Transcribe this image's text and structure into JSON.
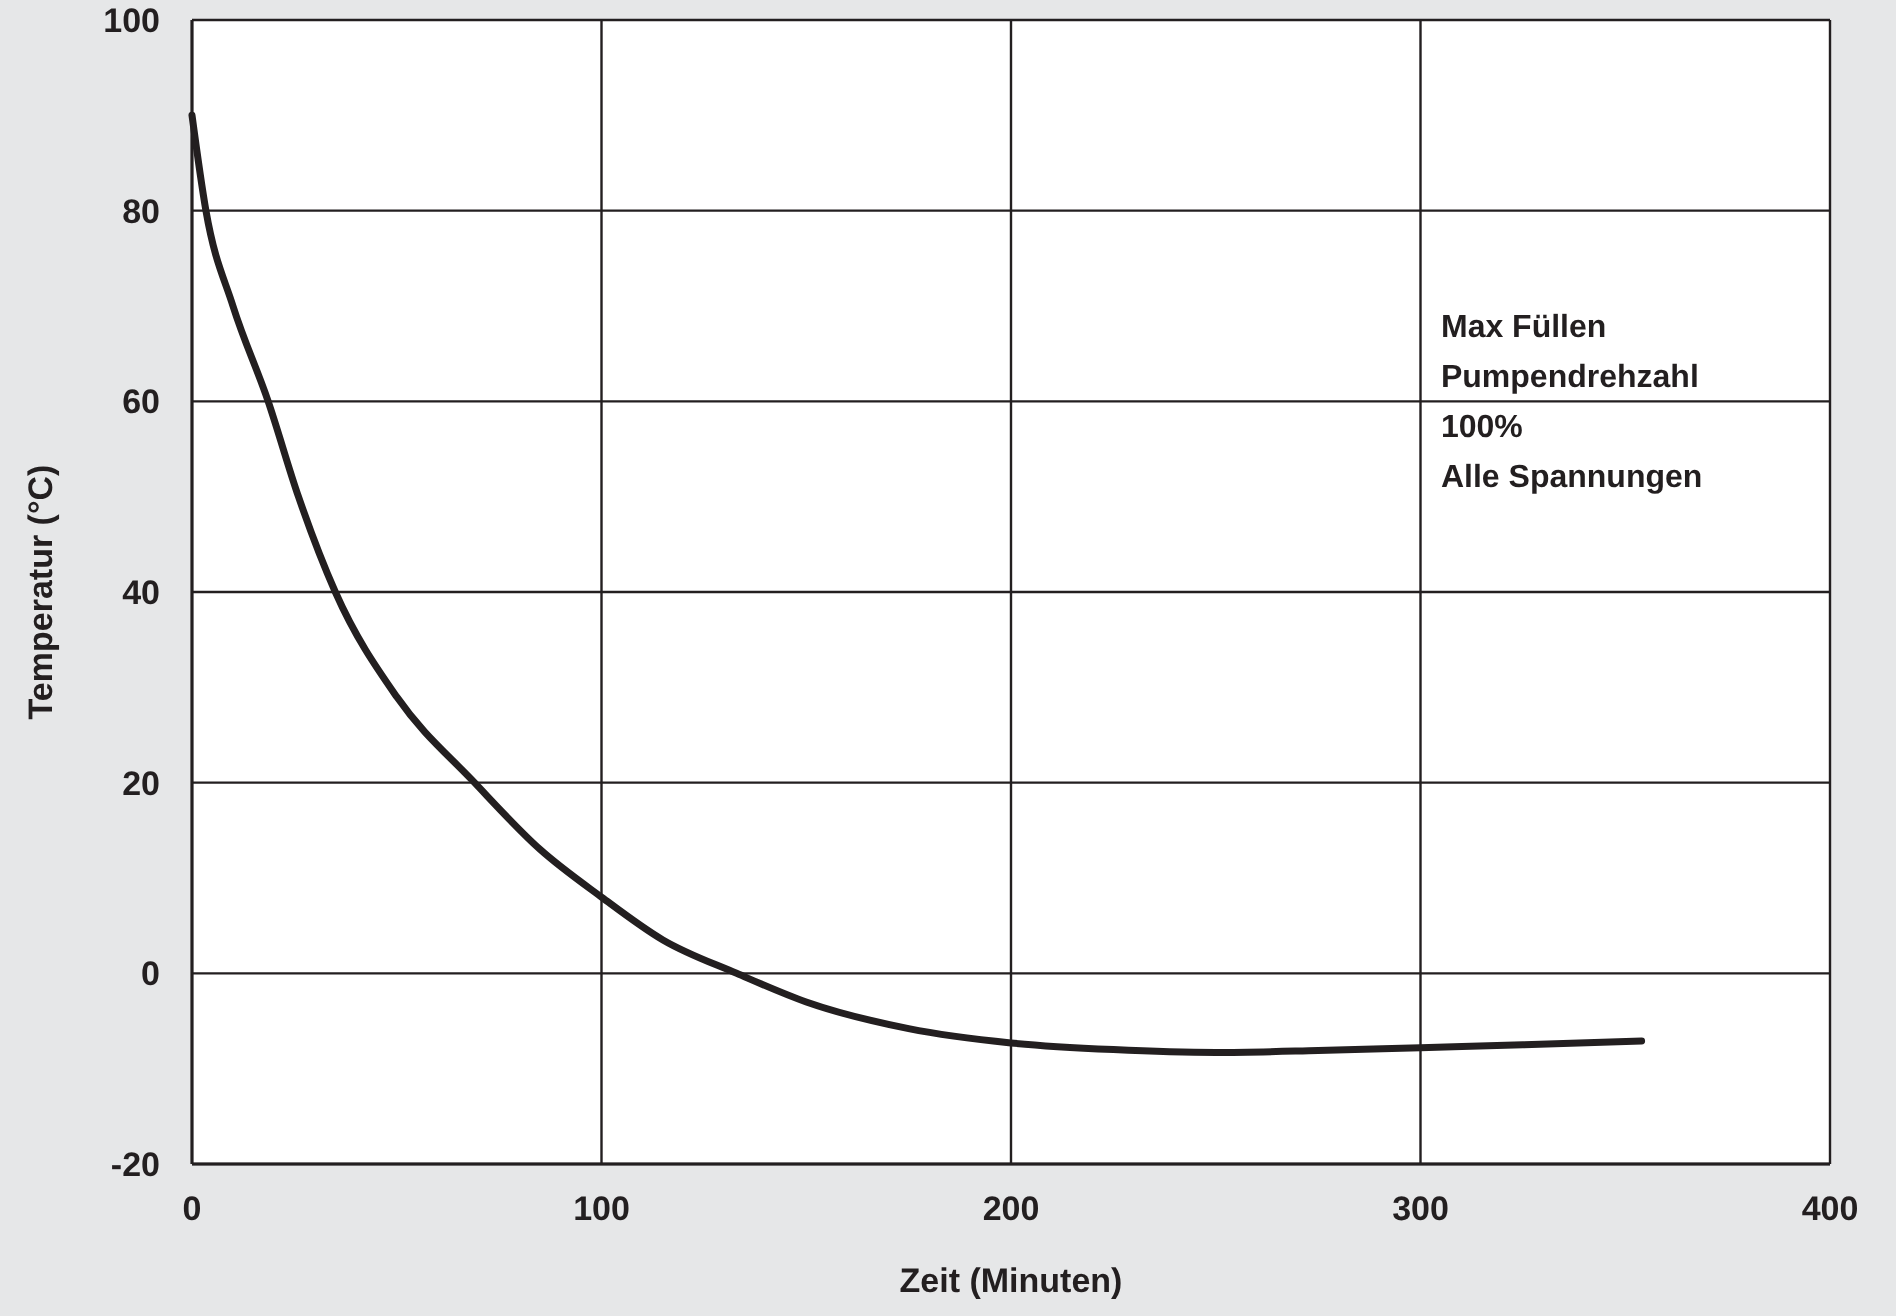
{
  "chart_data": {
    "type": "line",
    "xlabel": "Zeit (Minuten)",
    "ylabel": "Temperatur (°C)",
    "x": [
      0,
      3.4,
      10,
      18.6,
      26,
      35,
      50,
      69,
      85,
      100,
      115,
      133,
      150,
      175,
      200,
      225,
      250,
      275,
      300,
      325,
      354
    ],
    "series": [
      {
        "color": "#231f20",
        "values": [
          90,
          80,
          70,
          60,
          50,
          40,
          29,
          20,
          13,
          8,
          3.5,
          0,
          -3,
          -5.8,
          -7.3,
          -8,
          -8.3,
          -8.1,
          -7.8,
          -7.5,
          -7.1
        ]
      }
    ],
    "xlim": [
      0,
      400
    ],
    "xticks": [
      0,
      100,
      200,
      300,
      400
    ],
    "ylim": [
      -20,
      100
    ],
    "yticks": [
      -20,
      0,
      20,
      40,
      60,
      80,
      100
    ],
    "grid": true,
    "marker": "none",
    "line_style": "solid",
    "annotations": [
      "Max Füllen",
      "Pumpendrehzahl",
      "100%",
      "Alle Spannungen"
    ]
  }
}
